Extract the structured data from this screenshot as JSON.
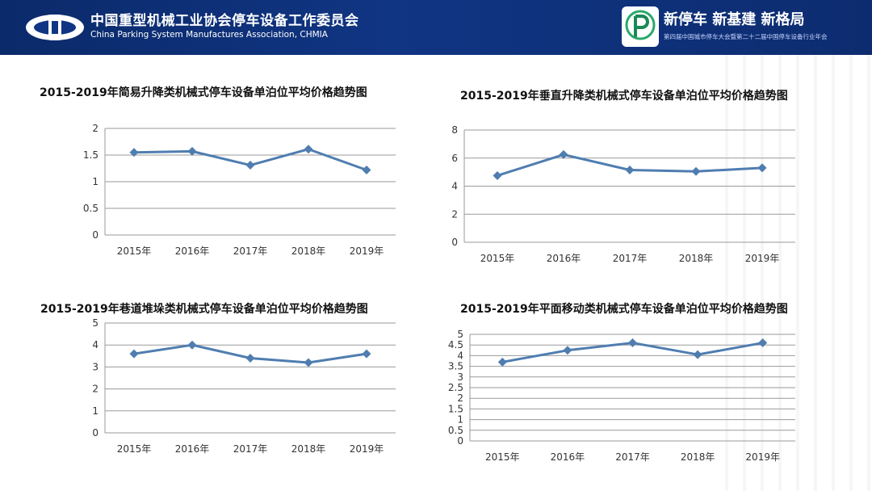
{
  "header": {
    "org_name_cn": "中国重型机械工业协会停车设备工作委员会",
    "org_name_en": "China Parking System Manufactures Association, CHMIA",
    "slogan": "新停车  新基建  新格局",
    "sub_slogan": "第四届中国城市停车大会暨第二十二届中国停车设备行业年会"
  },
  "colors": {
    "header_bg": "#103583",
    "series": "#4f7db0",
    "grid": "#9a9a9a"
  },
  "chart_data": [
    {
      "type": "line",
      "title": "2015-2019年简易升降类机械式停车设备单泊位平均价格趋势图",
      "categories": [
        "2015年",
        "2016年",
        "2017年",
        "2018年",
        "2019年"
      ],
      "values": [
        1.55,
        1.57,
        1.31,
        1.61,
        1.22
      ],
      "ylim": [
        0,
        2
      ],
      "yticks": [
        "0",
        "0.5",
        "1",
        "1.5",
        "2"
      ],
      "grid": true
    },
    {
      "type": "line",
      "title": "2015-2019年垂直升降类机械式停车设备单泊位平均价格趋势图",
      "categories": [
        "2015年",
        "2016年",
        "2017年",
        "2018年",
        "2019年"
      ],
      "values": [
        4.75,
        6.25,
        5.15,
        5.05,
        5.3
      ],
      "ylim": [
        0,
        8
      ],
      "yticks": [
        "0",
        "2",
        "4",
        "6",
        "8"
      ],
      "grid": true
    },
    {
      "type": "line",
      "title": "2015-2019年巷道堆垛类机械式停车设备单泊位平均价格趋势图",
      "categories": [
        "2015年",
        "2016年",
        "2017年",
        "2018年",
        "2019年"
      ],
      "values": [
        3.6,
        4.0,
        3.4,
        3.2,
        3.6
      ],
      "ylim": [
        0,
        5
      ],
      "yticks": [
        "0",
        "1",
        "2",
        "3",
        "4",
        "5"
      ],
      "grid": true
    },
    {
      "type": "line",
      "title": "2015-2019年平面移动类机械式停车设备单泊位平均价格趋势图",
      "categories": [
        "2015年",
        "2016年",
        "2017年",
        "2018年",
        "2019年"
      ],
      "values": [
        3.7,
        4.25,
        4.6,
        4.05,
        4.6
      ],
      "ylim": [
        0,
        5
      ],
      "yticks": [
        "0",
        "0.5",
        "1",
        "1.5",
        "2",
        "2.5",
        "3",
        "3.5",
        "4",
        "4.5",
        "5"
      ],
      "grid": true
    }
  ]
}
